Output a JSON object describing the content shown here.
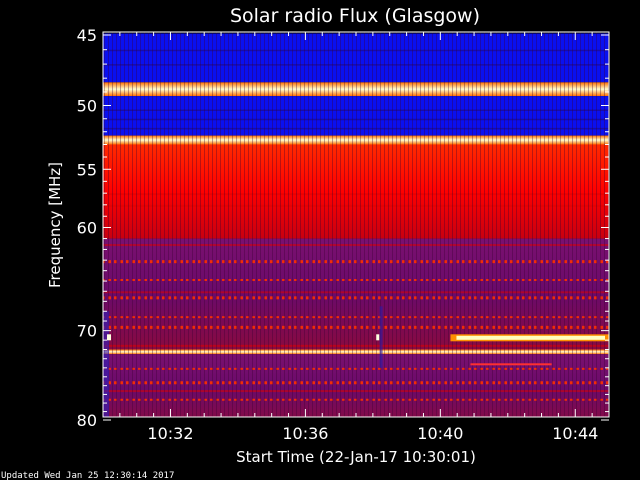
{
  "chart_data": {
    "type": "heatmap",
    "title": "Solar radio Flux (Glasgow)",
    "xlabel": "Start Time (22-Jan-17 10:30:01)",
    "ylabel": "Frequency [MHz]",
    "x_tick_labels": [
      "10:32",
      "10:36",
      "10:40",
      "10:44"
    ],
    "x_ticks_minutes": [
      32,
      36,
      40,
      44
    ],
    "xlim_minutes": [
      30.0,
      45.0
    ],
    "y_tick_labels": [
      "45",
      "50",
      "55",
      "60",
      "70",
      "80"
    ],
    "y_ticks": [
      45,
      50,
      55,
      60,
      70,
      80
    ],
    "ylim": [
      45,
      80
    ],
    "y_scale": "log",
    "colormap": [
      "#0000ff",
      "#3a1a9a",
      "#b00000",
      "#ff0000",
      "#ffcc44",
      "#ffffff"
    ],
    "bands": [
      {
        "f1": 44.9,
        "f2": 48.3,
        "level": "low"
      },
      {
        "f1": 48.3,
        "f2": 49.3,
        "level": "high"
      },
      {
        "f1": 49.3,
        "f2": 52.3,
        "level": "low"
      },
      {
        "f1": 52.3,
        "f2": 53.0,
        "level": "high"
      },
      {
        "f1": 53.0,
        "f2": 61.0,
        "level": "med-high"
      },
      {
        "f1": 61.0,
        "f2": 72.0,
        "level": "mixed"
      },
      {
        "f1": 72.0,
        "f2": 72.5,
        "level": "high"
      },
      {
        "f1": 72.5,
        "f2": 80.5,
        "level": "mixed"
      }
    ],
    "burst": {
      "f": 70.7,
      "t_start": 40.3,
      "t_end": 45.0,
      "level": "high"
    },
    "colors": {
      "background": "#000000",
      "text": "#ffffff",
      "axis": "#ffffff"
    }
  },
  "footer": {
    "updated": "Updated Wed Jan 25 12:30:14 2017"
  }
}
